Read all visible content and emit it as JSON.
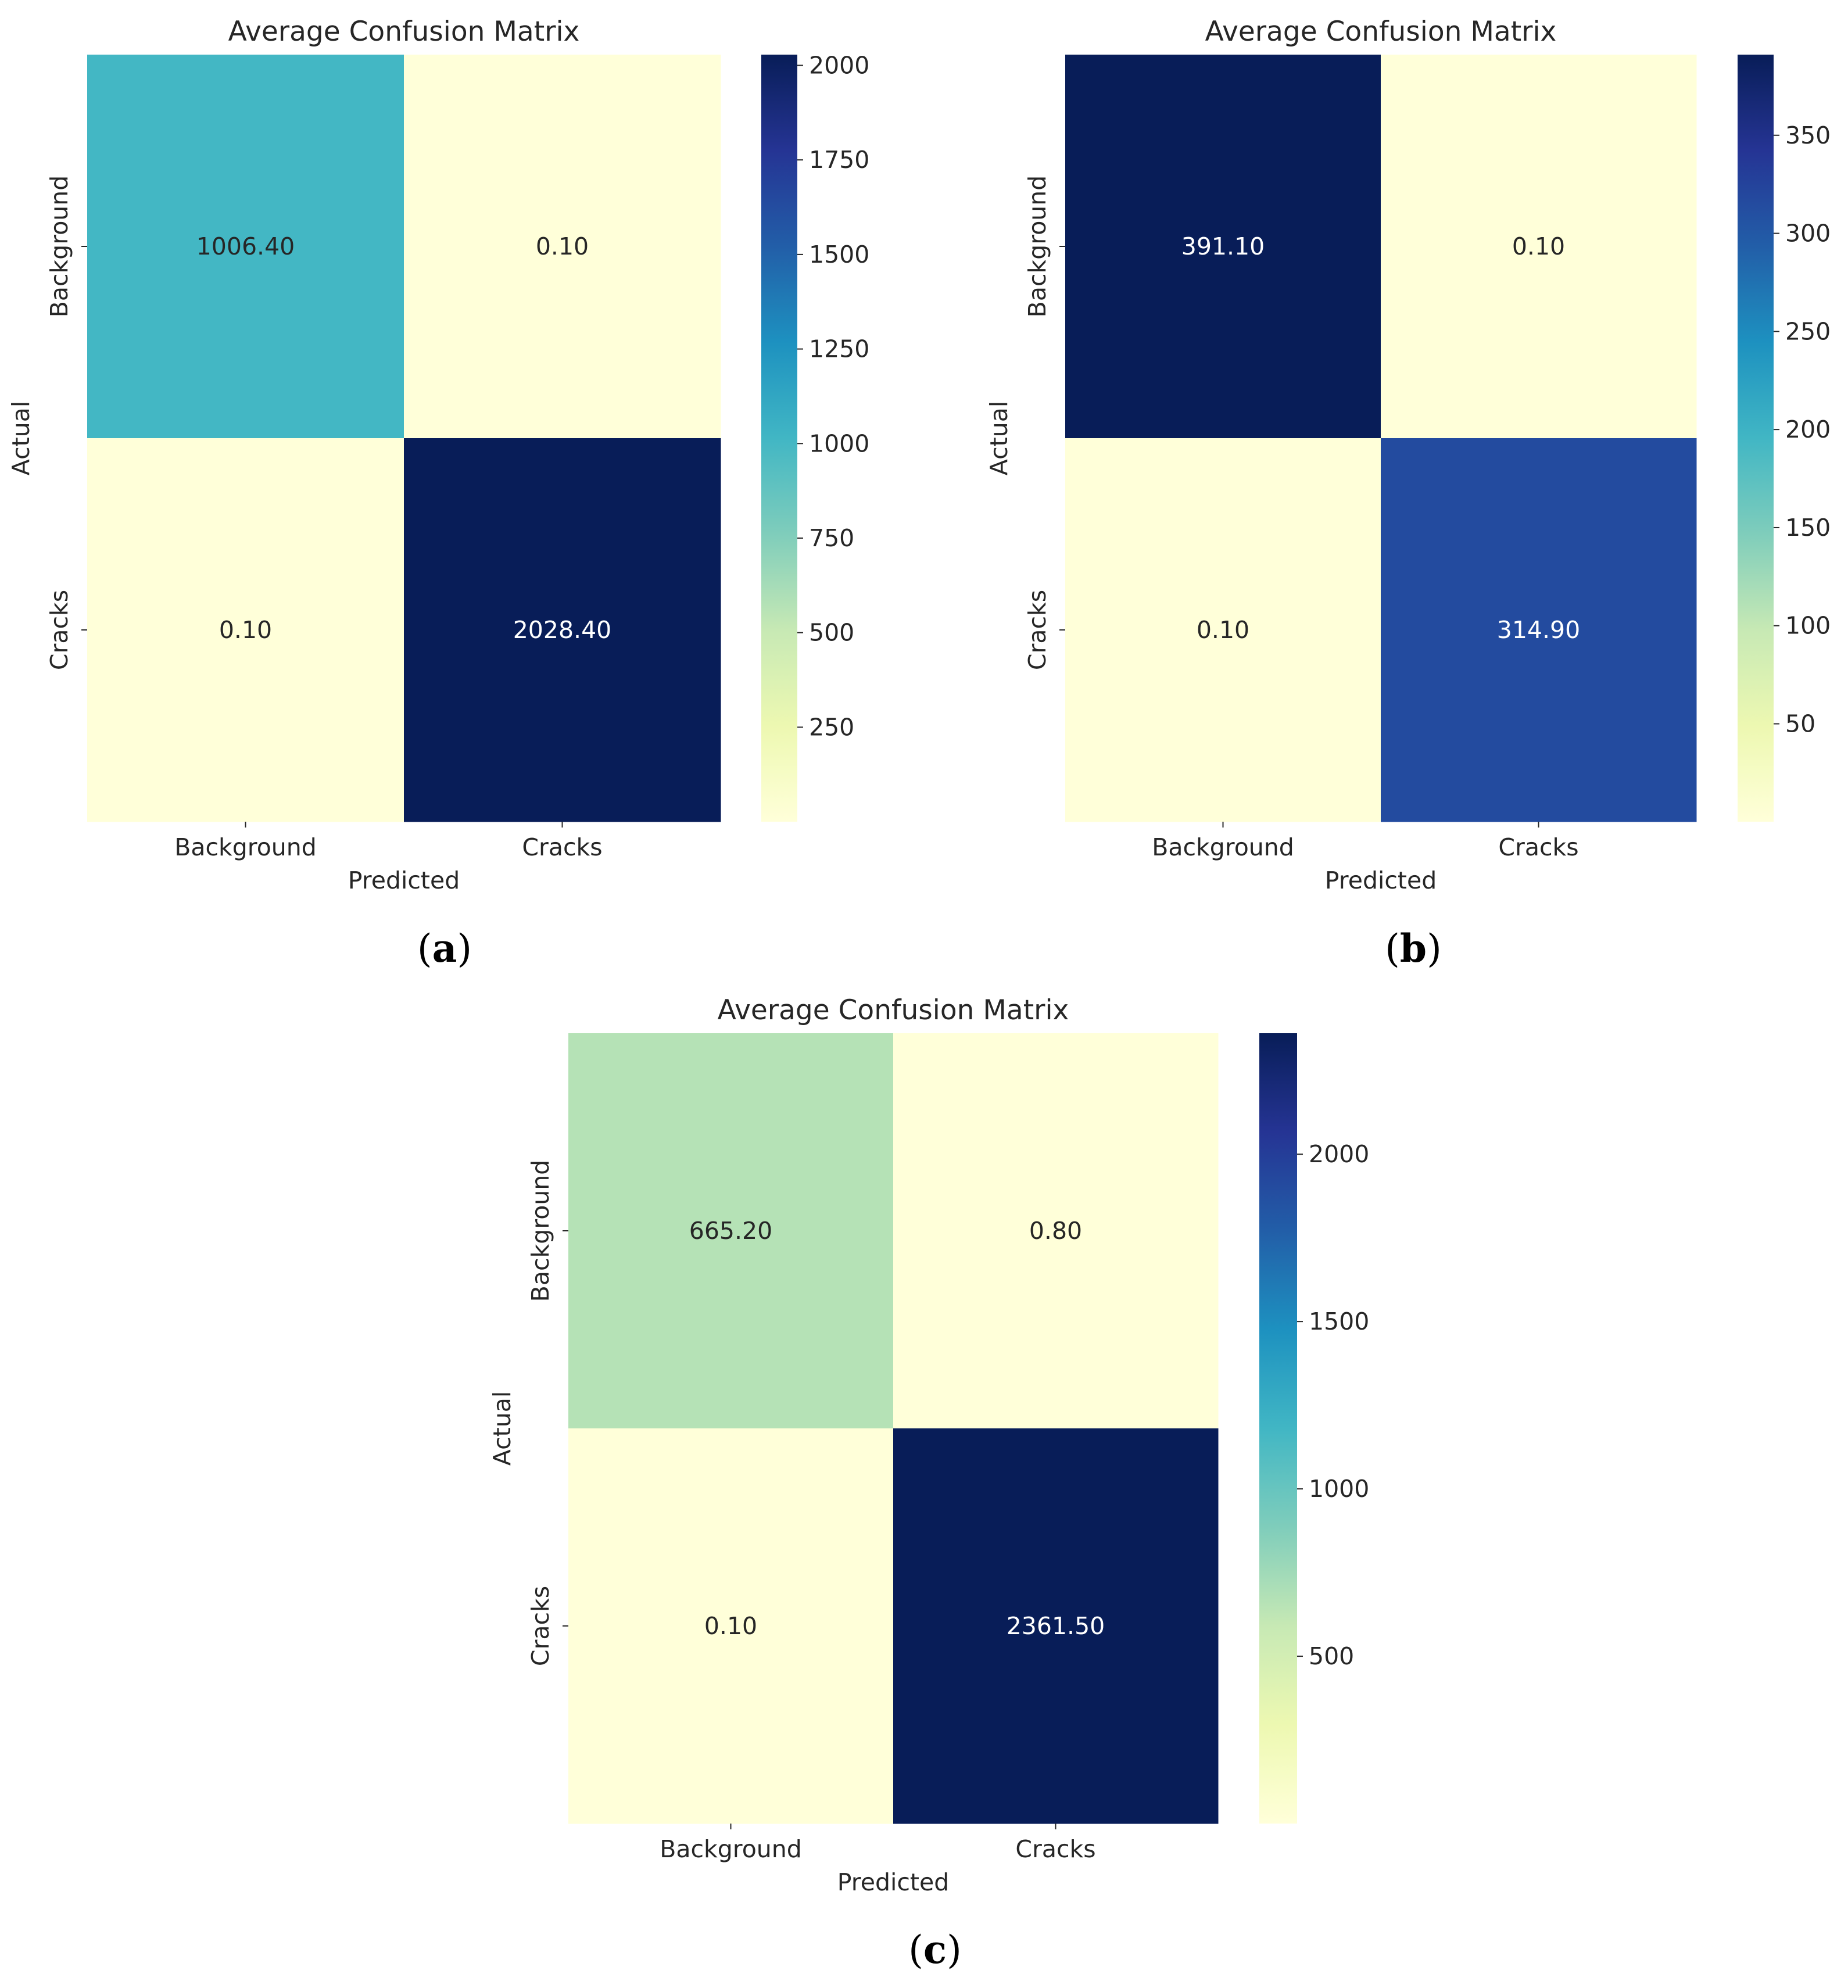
{
  "chart_data": [
    {
      "type": "heatmap",
      "panel": "a",
      "title": "Average Confusion Matrix",
      "xlabel": "Predicted",
      "ylabel": "Actual",
      "x_categories": [
        "Background",
        "Cracks"
      ],
      "y_categories": [
        "Background",
        "Cracks"
      ],
      "values": [
        [
          1006.4,
          0.1
        ],
        [
          0.1,
          2028.4
        ]
      ],
      "value_labels": [
        [
          "1006.40",
          "0.10"
        ],
        [
          "0.10",
          "2028.40"
        ]
      ],
      "colormap": "YlGnBu",
      "colorbar": {
        "range": [
          0.1,
          2028.4
        ],
        "ticks": [
          250,
          500,
          750,
          1000,
          1250,
          1500,
          1750,
          2000
        ]
      }
    },
    {
      "type": "heatmap",
      "panel": "b",
      "title": "Average Confusion Matrix",
      "xlabel": "Predicted",
      "ylabel": "Actual",
      "x_categories": [
        "Background",
        "Cracks"
      ],
      "y_categories": [
        "Background",
        "Cracks"
      ],
      "values": [
        [
          391.1,
          0.1
        ],
        [
          0.1,
          314.9
        ]
      ],
      "value_labels": [
        [
          "391.10",
          "0.10"
        ],
        [
          "0.10",
          "314.90"
        ]
      ],
      "colormap": "YlGnBu",
      "colorbar": {
        "range": [
          0.1,
          391.1
        ],
        "ticks": [
          50,
          100,
          150,
          200,
          250,
          300,
          350
        ]
      }
    },
    {
      "type": "heatmap",
      "panel": "c",
      "title": "Average Confusion Matrix",
      "xlabel": "Predicted",
      "ylabel": "Actual",
      "x_categories": [
        "Background",
        "Cracks"
      ],
      "y_categories": [
        "Background",
        "Cracks"
      ],
      "values": [
        [
          665.2,
          0.8
        ],
        [
          0.1,
          2361.5
        ]
      ],
      "value_labels": [
        [
          "665.20",
          "0.80"
        ],
        [
          "0.10",
          "2361.50"
        ]
      ],
      "colormap": "YlGnBu",
      "colorbar": {
        "range": [
          0.1,
          2361.5
        ],
        "ticks": [
          500,
          1000,
          1500,
          2000
        ]
      }
    }
  ],
  "panel_labels": [
    "(a)",
    "(b)",
    "(c)"
  ]
}
